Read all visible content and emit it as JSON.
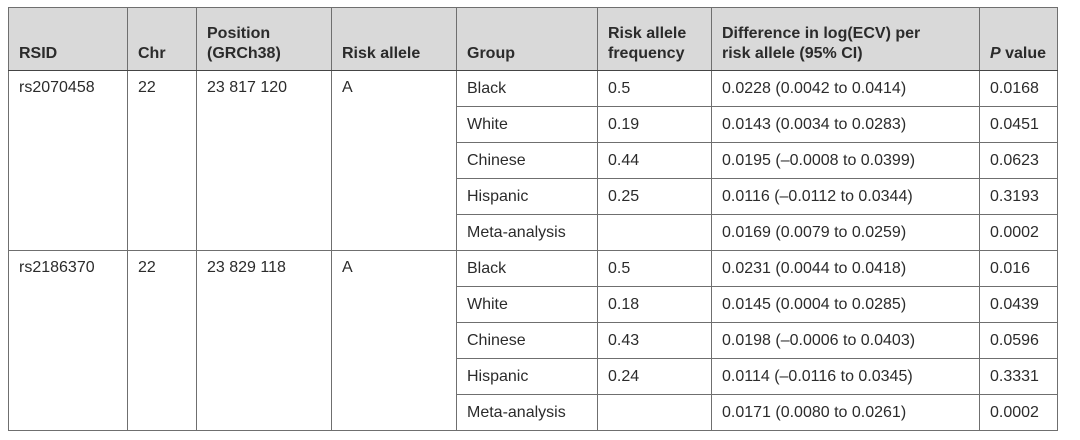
{
  "table": {
    "headers": {
      "rsid": "RSID",
      "chr": "Chr",
      "position_line1": "Position",
      "position_line2": "(GRCh38)",
      "risk_allele": "Risk allele",
      "group": "Group",
      "freq_line1": "Risk allele",
      "freq_line2": "frequency",
      "diff_line1": "Difference in log(ECV) per",
      "diff_line2": "risk allele (95% CI)",
      "pval_italic": "P",
      "pval_rest": " value"
    },
    "snps": [
      {
        "rsid": "rs2070458",
        "chr": "22",
        "position": "23 817 120",
        "risk_allele": "A",
        "rows": [
          {
            "group": "Black",
            "freq": "0.5",
            "diff": "0.0228 (0.0042 to 0.0414)",
            "pval": "0.0168"
          },
          {
            "group": "White",
            "freq": "0.19",
            "diff": "0.0143 (0.0034 to 0.0283)",
            "pval": "0.0451"
          },
          {
            "group": "Chinese",
            "freq": "0.44",
            "diff": "0.0195 (–0.0008 to 0.0399)",
            "pval": "0.0623"
          },
          {
            "group": "Hispanic",
            "freq": "0.25",
            "diff": "0.0116 (–0.0112 to 0.0344)",
            "pval": "0.3193"
          },
          {
            "group": "Meta-analysis",
            "freq": "",
            "diff": "0.0169 (0.0079 to 0.0259)",
            "pval": "0.0002"
          }
        ]
      },
      {
        "rsid": "rs2186370",
        "chr": "22",
        "position": "23 829 118",
        "risk_allele": "A",
        "rows": [
          {
            "group": "Black",
            "freq": "0.5",
            "diff": "0.0231 (0.0044 to 0.0418)",
            "pval": "0.016"
          },
          {
            "group": "White",
            "freq": "0.18",
            "diff": "0.0145 (0.0004 to 0.0285)",
            "pval": "0.0439"
          },
          {
            "group": "Chinese",
            "freq": "0.43",
            "diff": "0.0198 (–0.0006 to 0.0403)",
            "pval": "0.0596"
          },
          {
            "group": "Hispanic",
            "freq": "0.24",
            "diff": "0.0114 (–0.0116 to 0.0345)",
            "pval": "0.3331"
          },
          {
            "group": "Meta-analysis",
            "freq": "",
            "diff": "0.0171 (0.0080 to 0.0261)",
            "pval": "0.0002"
          }
        ]
      }
    ]
  }
}
